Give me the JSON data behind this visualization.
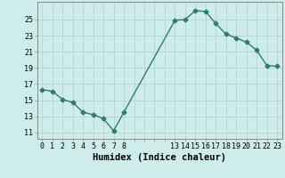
{
  "x": [
    0,
    1,
    2,
    3,
    4,
    5,
    6,
    7,
    8,
    13,
    14,
    15,
    16,
    17,
    18,
    19,
    20,
    21,
    22,
    23
  ],
  "y": [
    16.3,
    16.1,
    15.1,
    14.7,
    13.5,
    13.2,
    12.7,
    11.2,
    13.5,
    24.9,
    25.0,
    26.1,
    26.0,
    24.5,
    23.2,
    22.7,
    22.2,
    21.2,
    19.3,
    19.2
  ],
  "xticks_major": [
    0,
    1,
    2,
    3,
    4,
    5,
    6,
    7,
    8,
    9,
    10,
    11,
    12,
    13,
    14,
    15,
    16,
    17,
    18,
    19,
    20,
    21,
    22,
    23
  ],
  "xtick_labels": [
    "0",
    "1",
    "2",
    "3",
    "4",
    "5",
    "6",
    "7",
    "8",
    "",
    "",
    "",
    "",
    "13",
    "14",
    "15",
    "16",
    "17",
    "18",
    "19",
    "20",
    "21",
    "22",
    "23"
  ],
  "yticks": [
    11,
    13,
    15,
    17,
    19,
    21,
    23,
    25
  ],
  "ylim": [
    10.2,
    27.2
  ],
  "xlim": [
    -0.5,
    23.5
  ],
  "xlabel": "Humidex (Indice chaleur)",
  "line_color": "#2d7d6e",
  "marker": "D",
  "markersize": 2.5,
  "linewidth": 1.0,
  "bg_color": "#ceecea",
  "grid_color": "#b8d8d5",
  "tick_fontsize": 6,
  "xlabel_fontsize": 7.5,
  "xlabel_fontweight": "bold"
}
